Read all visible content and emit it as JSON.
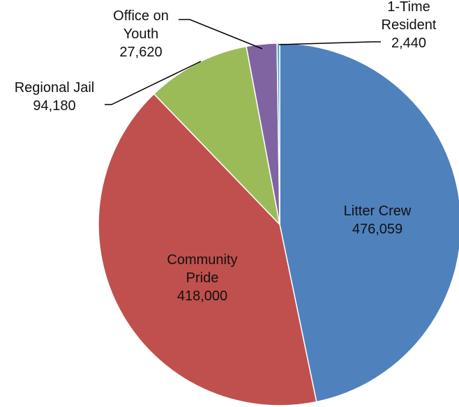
{
  "chart_data": {
    "type": "pie",
    "title": "",
    "slices": [
      {
        "label_lines": [
          "Litter Crew"
        ],
        "value_text": "476,059",
        "value": 476059,
        "color": "#4F81BD"
      },
      {
        "label_lines": [
          "Community",
          "Pride"
        ],
        "value_text": "418,000",
        "value": 418000,
        "color": "#C0504D"
      },
      {
        "label_lines": [
          "Regional Jail"
        ],
        "value_text": "94,180",
        "value": 94180,
        "color": "#9BBB59"
      },
      {
        "label_lines": [
          "Office on",
          "Youth"
        ],
        "value_text": "27,620",
        "value": 27620,
        "color": "#8064A2"
      },
      {
        "label_lines": [
          "1-Time",
          "Resident"
        ],
        "value_text": "2,440",
        "value": 2440,
        "color": "#4BACC6"
      }
    ],
    "legend": "none"
  }
}
